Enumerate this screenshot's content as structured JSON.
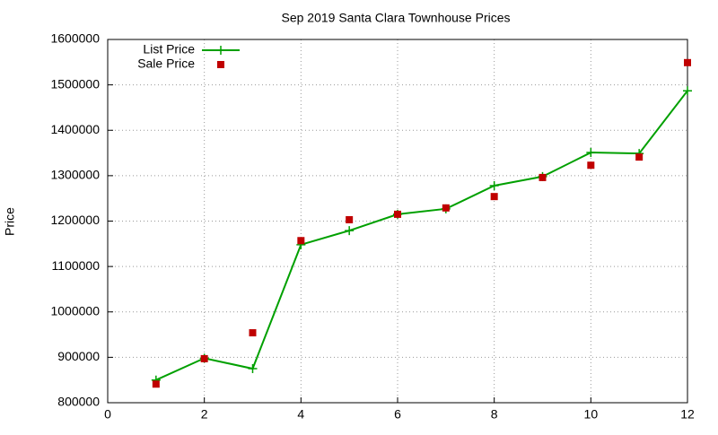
{
  "chart_data": {
    "type": "line",
    "title": "Sep 2019 Santa Clara Townhouse Prices",
    "y_label": "Price",
    "x": [
      1,
      2,
      3,
      4,
      5,
      6,
      7,
      8,
      9,
      10,
      11,
      12
    ],
    "series": [
      {
        "name": "List Price",
        "color": "#00a000",
        "style": "linespoints",
        "values": [
          850000,
          898000,
          875000,
          1148000,
          1179000,
          1215000,
          1227000,
          1278000,
          1298000,
          1351000,
          1349000,
          1487000
        ]
      },
      {
        "name": "Sale Price",
        "color": "#c00000",
        "style": "points",
        "values": [
          841000,
          897000,
          954000,
          1157000,
          1203000,
          1215000,
          1229000,
          1254000,
          1296000,
          1323000,
          1341000,
          1549000
        ]
      }
    ],
    "xlim": [
      0,
      12
    ],
    "xticks": [
      0,
      2,
      4,
      6,
      8,
      10,
      12
    ],
    "ylim": [
      800000,
      1600000
    ],
    "yticks": [
      800000,
      900000,
      1000000,
      1100000,
      1200000,
      1300000,
      1400000,
      1500000,
      1600000
    ],
    "grid": true,
    "legend": "top-left"
  }
}
